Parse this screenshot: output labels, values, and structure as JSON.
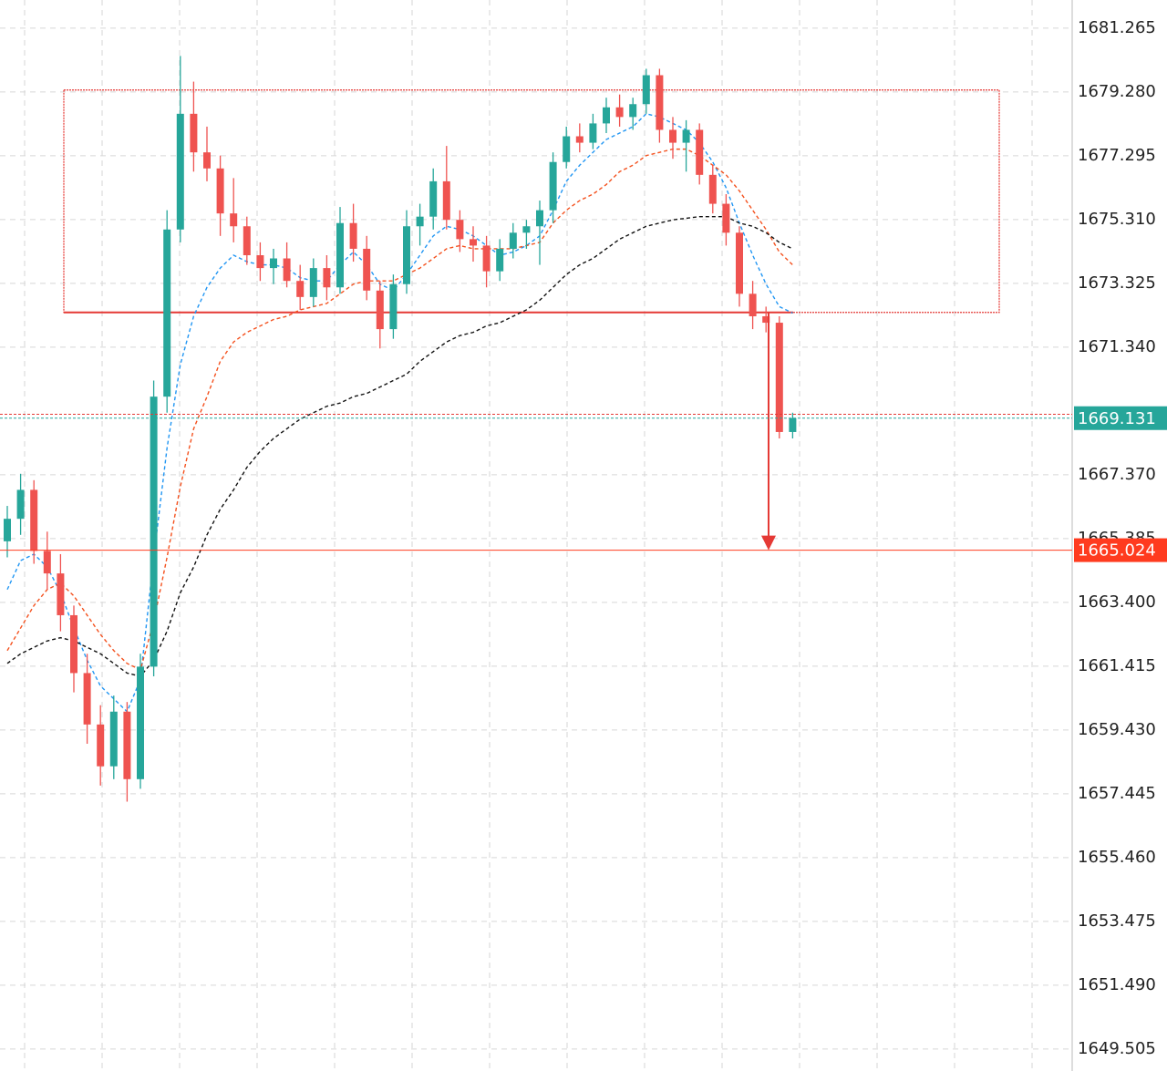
{
  "chart_data": {
    "type": "candlestick",
    "ylim": [
      1648.82,
      1682.14
    ],
    "yticks": [
      1681.265,
      {
        "value": 1679.28,
        "label": "1679.280"
      },
      1677.295,
      {
        "value": 1675.31,
        "label": "1675.310"
      },
      1673.325,
      {
        "value": 1671.34,
        "label": "1671.340"
      },
      {
        "value": 1667.37,
        "label": "1667.370"
      },
      1665.385,
      {
        "value": 1663.4,
        "label": "1663.400"
      },
      1661.415,
      {
        "value": 1659.43,
        "label": "1659.430"
      },
      1657.445,
      {
        "value": 1655.46,
        "label": "1655.460"
      },
      1653.475,
      {
        "value": 1651.49,
        "label": "1651.490"
      },
      1649.505
    ],
    "grid": true,
    "up_color": "#26a69a",
    "down_color": "#ef5350",
    "open": [
      1665.3,
      1666.0,
      1666.9,
      1665.0,
      1664.3,
      1663.0,
      1661.2,
      1659.6,
      1658.3,
      1660.0,
      1657.9,
      1661.4,
      1669.8,
      1675.0,
      1678.6,
      1677.4,
      1676.9,
      1675.5,
      1675.1,
      1674.2,
      1673.8,
      1674.1,
      1673.4,
      1672.9,
      1673.8,
      1673.2,
      1675.2,
      1674.4,
      1673.1,
      1671.9,
      1673.3,
      1675.1,
      1675.4,
      1676.5,
      1675.3,
      1674.7,
      1674.5,
      1673.7,
      1674.4,
      1674.9,
      1675.1,
      1675.6,
      1677.1,
      1677.9,
      1677.7,
      1678.3,
      1678.8,
      1678.5,
      1678.9,
      1679.8,
      1678.1,
      1677.7,
      1678.1,
      1676.7,
      1675.8,
      1674.9,
      1673.0,
      1672.3,
      1672.1,
      1668.7
    ],
    "high": [
      1666.4,
      1667.4,
      1667.2,
      1665.6,
      1664.9,
      1663.3,
      1661.8,
      1660.2,
      1660.5,
      1660.3,
      1661.8,
      1670.3,
      1675.6,
      1680.4,
      1679.6,
      1678.2,
      1677.3,
      1676.6,
      1675.4,
      1674.6,
      1674.4,
      1674.6,
      1673.9,
      1674.1,
      1674.2,
      1675.7,
      1675.8,
      1674.8,
      1673.4,
      1673.6,
      1675.6,
      1675.8,
      1676.9,
      1677.6,
      1675.6,
      1675.1,
      1674.8,
      1674.7,
      1675.2,
      1675.3,
      1675.9,
      1677.4,
      1678.2,
      1678.3,
      1678.6,
      1679.1,
      1679.2,
      1679.1,
      1680.0,
      1680.0,
      1678.5,
      1678.4,
      1678.3,
      1677.0,
      1676.1,
      1675.1,
      1673.4,
      1672.6,
      1672.3,
      1669.3
    ],
    "low": [
      1664.8,
      1665.5,
      1664.6,
      1663.8,
      1662.5,
      1660.6,
      1659.0,
      1657.7,
      1657.9,
      1657.2,
      1657.6,
      1661.1,
      1669.3,
      1674.6,
      1676.8,
      1676.5,
      1674.8,
      1674.6,
      1673.9,
      1673.4,
      1673.3,
      1673.2,
      1672.5,
      1672.6,
      1672.8,
      1673.0,
      1674.0,
      1672.8,
      1671.3,
      1671.6,
      1673.0,
      1674.5,
      1675.0,
      1675.0,
      1674.3,
      1674.0,
      1673.2,
      1673.4,
      1674.1,
      1674.4,
      1673.9,
      1675.2,
      1676.9,
      1677.4,
      1677.5,
      1678.0,
      1678.2,
      1678.1,
      1678.6,
      1677.7,
      1677.2,
      1676.8,
      1676.4,
      1675.5,
      1674.5,
      1672.6,
      1671.9,
      1671.8,
      1668.5,
      1668.5
    ],
    "close": [
      1666.0,
      1666.9,
      1665.0,
      1664.3,
      1663.0,
      1661.2,
      1659.6,
      1658.3,
      1660.0,
      1657.9,
      1661.4,
      1669.8,
      1675.0,
      1678.6,
      1677.4,
      1676.9,
      1675.5,
      1675.1,
      1674.2,
      1673.8,
      1674.1,
      1673.4,
      1672.9,
      1673.8,
      1673.2,
      1675.2,
      1674.4,
      1673.1,
      1671.9,
      1673.3,
      1675.1,
      1675.4,
      1676.5,
      1675.3,
      1674.7,
      1674.5,
      1673.7,
      1674.4,
      1674.9,
      1675.1,
      1675.6,
      1677.1,
      1677.9,
      1677.7,
      1678.3,
      1678.8,
      1678.5,
      1678.9,
      1679.8,
      1678.1,
      1677.7,
      1678.1,
      1676.7,
      1675.8,
      1674.9,
      1673.0,
      1672.3,
      1672.1,
      1668.7,
      1669.131
    ],
    "moving_averages": [
      {
        "color": "#2196f3",
        "values": [
          1663.8,
          1664.7,
          1664.9,
          1664.5,
          1663.7,
          1662.6,
          1661.6,
          1660.8,
          1660.4,
          1660.0,
          1661.0,
          1664.8,
          1668.2,
          1670.8,
          1672.3,
          1673.2,
          1673.8,
          1674.2,
          1674.0,
          1673.9,
          1673.9,
          1673.8,
          1673.5,
          1673.4,
          1673.4,
          1673.9,
          1674.3,
          1673.9,
          1673.3,
          1673.1,
          1673.6,
          1674.2,
          1674.8,
          1675.1,
          1675.0,
          1674.8,
          1674.5,
          1674.2,
          1674.3,
          1674.5,
          1674.8,
          1675.6,
          1676.5,
          1677.0,
          1677.4,
          1677.8,
          1678.0,
          1678.2,
          1678.6,
          1678.5,
          1678.3,
          1678.1,
          1677.7,
          1677.1,
          1676.3,
          1675.2,
          1674.2,
          1673.3,
          1672.6,
          1672.4
        ]
      },
      {
        "color": "#f4511e",
        "values": [
          1661.9,
          1662.6,
          1663.3,
          1663.8,
          1664.0,
          1663.6,
          1663.0,
          1662.4,
          1661.9,
          1661.5,
          1661.3,
          1662.8,
          1664.8,
          1667.0,
          1668.8,
          1669.8,
          1670.9,
          1671.5,
          1671.8,
          1672.0,
          1672.2,
          1672.3,
          1672.5,
          1672.6,
          1672.7,
          1673.0,
          1673.3,
          1673.4,
          1673.4,
          1673.4,
          1673.6,
          1673.8,
          1674.1,
          1674.4,
          1674.5,
          1674.4,
          1674.4,
          1674.4,
          1674.4,
          1674.5,
          1674.6,
          1675.2,
          1675.6,
          1675.9,
          1676.1,
          1676.4,
          1676.8,
          1677.0,
          1677.3,
          1677.4,
          1677.5,
          1677.5,
          1677.3,
          1677.0,
          1676.7,
          1676.2,
          1675.6,
          1675.0,
          1674.3,
          1673.9
        ]
      },
      {
        "color": "#111111",
        "values": [
          1661.5,
          1661.8,
          1662.0,
          1662.2,
          1662.3,
          1662.2,
          1662.0,
          1661.8,
          1661.5,
          1661.2,
          1661.1,
          1661.6,
          1662.5,
          1663.7,
          1664.5,
          1665.5,
          1666.3,
          1666.9,
          1667.6,
          1668.1,
          1668.5,
          1668.8,
          1669.1,
          1669.3,
          1669.5,
          1669.6,
          1669.8,
          1669.9,
          1670.1,
          1670.3,
          1670.5,
          1670.9,
          1671.2,
          1671.5,
          1671.7,
          1671.8,
          1672.0,
          1672.1,
          1672.3,
          1672.5,
          1672.8,
          1673.2,
          1673.6,
          1673.9,
          1674.1,
          1674.4,
          1674.7,
          1674.9,
          1675.1,
          1675.2,
          1675.3,
          1675.35,
          1675.4,
          1675.4,
          1675.4,
          1675.2,
          1675.1,
          1674.9,
          1674.6,
          1674.4
        ]
      }
    ],
    "zone": {
      "top": 1679.34,
      "bottom": 1672.42,
      "color": "#e53935"
    },
    "price_lines": [
      {
        "value": 1669.25,
        "color": "#e53935",
        "tag": false
      },
      {
        "value": 1669.131,
        "color": "#26a69a",
        "tag": true
      },
      {
        "value": 1665.024,
        "color": "#ff3b1f",
        "tag": true
      }
    ]
  }
}
